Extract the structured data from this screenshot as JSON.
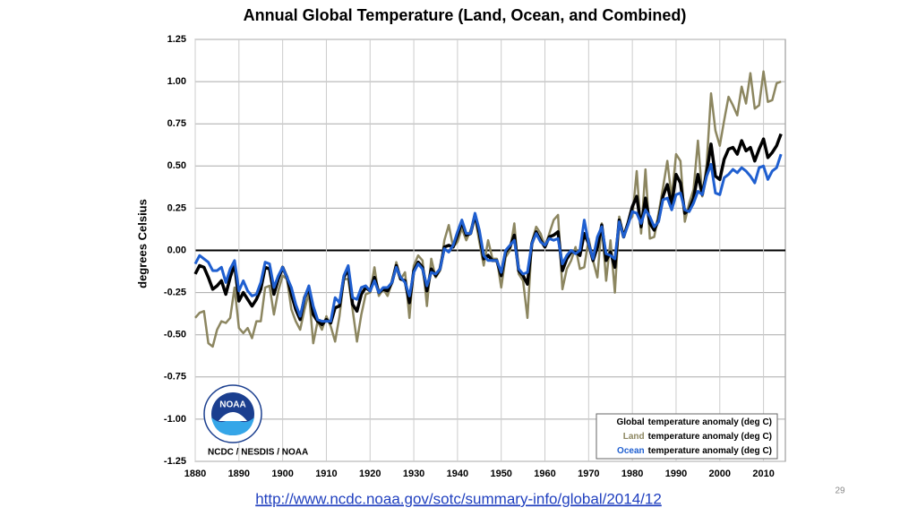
{
  "chart_data": {
    "type": "line",
    "title": "Annual Global Temperature (Land, Ocean, and Combined)",
    "y_label": "degrees Celsius",
    "source": "NCDC / NESDIS / NOAA",
    "logo_text": "NOAA",
    "link": "http://www.ncdc.noaa.gov/sotc/summary-info/global/2014/12",
    "page_number": "29",
    "grid": true,
    "legend": "lower right",
    "xlim": [
      1880,
      2015
    ],
    "ylim": [
      -1.25,
      1.25
    ],
    "xticks": [
      1880,
      1890,
      1900,
      1910,
      1920,
      1930,
      1940,
      1950,
      1960,
      1970,
      1980,
      1990,
      2000,
      2010
    ],
    "yticks": [
      {
        "value": -1.25,
        "label": "-1.25"
      },
      {
        "value": -1,
        "label": "-1.00"
      },
      {
        "value": -0.75,
        "label": "-0.75"
      },
      {
        "value": -0.5,
        "label": "-0.50"
      },
      {
        "value": -0.25,
        "label": "-0.25"
      },
      {
        "value": 0,
        "label": "0.00"
      },
      {
        "value": 0.25,
        "label": "0.25"
      },
      {
        "value": 0.5,
        "label": "0.50"
      },
      {
        "value": 0.75,
        "label": "0.75"
      },
      {
        "value": 1,
        "label": "1.00"
      },
      {
        "value": 1.25,
        "label": "1.25"
      }
    ],
    "x": [
      1880,
      1881,
      1882,
      1883,
      1884,
      1885,
      1886,
      1887,
      1888,
      1889,
      1890,
      1891,
      1892,
      1893,
      1894,
      1895,
      1896,
      1897,
      1898,
      1899,
      1900,
      1901,
      1902,
      1903,
      1904,
      1905,
      1906,
      1907,
      1908,
      1909,
      1910,
      1911,
      1912,
      1913,
      1914,
      1915,
      1916,
      1917,
      1918,
      1919,
      1920,
      1921,
      1922,
      1923,
      1924,
      1925,
      1926,
      1927,
      1928,
      1929,
      1930,
      1931,
      1932,
      1933,
      1934,
      1935,
      1936,
      1937,
      1938,
      1939,
      1940,
      1941,
      1942,
      1943,
      1944,
      1945,
      1946,
      1947,
      1948,
      1949,
      1950,
      1951,
      1952,
      1953,
      1954,
      1955,
      1956,
      1957,
      1958,
      1959,
      1960,
      1961,
      1962,
      1963,
      1964,
      1965,
      1966,
      1967,
      1968,
      1969,
      1970,
      1971,
      1972,
      1973,
      1974,
      1975,
      1976,
      1977,
      1978,
      1979,
      1980,
      1981,
      1982,
      1983,
      1984,
      1985,
      1986,
      1987,
      1988,
      1989,
      1990,
      1991,
      1992,
      1993,
      1994,
      1995,
      1996,
      1997,
      1998,
      1999,
      2000,
      2001,
      2002,
      2003,
      2004,
      2005,
      2006,
      2007,
      2008,
      2009,
      2010,
      2011,
      2012,
      2013,
      2014
    ],
    "series": [
      {
        "name": "Land",
        "legend_text": "temperature anomaly (deg C)",
        "color": "#8c8660",
        "width": 2.5,
        "values": [
          -0.4,
          -0.37,
          -0.36,
          -0.55,
          -0.57,
          -0.47,
          -0.42,
          -0.43,
          -0.4,
          -0.22,
          -0.46,
          -0.49,
          -0.46,
          -0.52,
          -0.42,
          -0.42,
          -0.22,
          -0.21,
          -0.38,
          -0.24,
          -0.15,
          -0.17,
          -0.35,
          -0.42,
          -0.47,
          -0.35,
          -0.25,
          -0.55,
          -0.42,
          -0.47,
          -0.39,
          -0.45,
          -0.54,
          -0.39,
          -0.17,
          -0.17,
          -0.35,
          -0.54,
          -0.38,
          -0.26,
          -0.25,
          -0.1,
          -0.27,
          -0.23,
          -0.27,
          -0.19,
          -0.07,
          -0.17,
          -0.13,
          -0.4,
          -0.09,
          -0.03,
          -0.06,
          -0.33,
          -0.05,
          -0.16,
          -0.12,
          0.06,
          0.15,
          0.02,
          0.05,
          0.13,
          0.06,
          0.12,
          0.2,
          0.05,
          -0.09,
          0.06,
          -0.05,
          -0.05,
          -0.22,
          -0.04,
          0.0,
          0.16,
          -0.14,
          -0.18,
          -0.4,
          0.05,
          0.14,
          0.1,
          0.02,
          0.1,
          0.18,
          0.21,
          -0.23,
          -0.11,
          -0.06,
          0.02,
          -0.11,
          -0.1,
          0.07,
          -0.06,
          -0.16,
          0.16,
          -0.18,
          0.06,
          -0.25,
          0.2,
          0.09,
          0.17,
          0.2,
          0.47,
          0.1,
          0.48,
          0.07,
          0.08,
          0.22,
          0.37,
          0.53,
          0.31,
          0.57,
          0.53,
          0.17,
          0.28,
          0.36,
          0.65,
          0.32,
          0.51,
          0.93,
          0.71,
          0.62,
          0.77,
          0.91,
          0.86,
          0.8,
          0.97,
          0.87,
          1.05,
          0.84,
          0.86,
          1.06,
          0.88,
          0.89,
          0.99,
          1.0
        ]
      },
      {
        "name": "Global",
        "legend_text": "temperature anomaly (deg C)",
        "color": "#000000",
        "width": 3.5,
        "values": [
          -0.14,
          -0.09,
          -0.1,
          -0.16,
          -0.23,
          -0.21,
          -0.18,
          -0.26,
          -0.16,
          -0.08,
          -0.3,
          -0.25,
          -0.29,
          -0.33,
          -0.29,
          -0.23,
          -0.1,
          -0.11,
          -0.26,
          -0.17,
          -0.1,
          -0.16,
          -0.26,
          -0.35,
          -0.41,
          -0.28,
          -0.22,
          -0.38,
          -0.42,
          -0.44,
          -0.41,
          -0.43,
          -0.34,
          -0.33,
          -0.16,
          -0.11,
          -0.32,
          -0.36,
          -0.26,
          -0.22,
          -0.24,
          -0.16,
          -0.25,
          -0.23,
          -0.24,
          -0.19,
          -0.09,
          -0.17,
          -0.18,
          -0.31,
          -0.12,
          -0.07,
          -0.1,
          -0.24,
          -0.11,
          -0.15,
          -0.11,
          0.02,
          0.03,
          0.02,
          0.09,
          0.17,
          0.09,
          0.1,
          0.21,
          0.1,
          -0.05,
          -0.03,
          -0.06,
          -0.06,
          -0.15,
          -0.01,
          0.02,
          0.09,
          -0.12,
          -0.15,
          -0.2,
          0.04,
          0.11,
          0.06,
          0.02,
          0.08,
          0.09,
          0.11,
          -0.12,
          -0.05,
          -0.01,
          -0.01,
          -0.03,
          0.1,
          0.04,
          -0.06,
          0.02,
          0.15,
          -0.06,
          -0.01,
          -0.1,
          0.18,
          0.08,
          0.16,
          0.26,
          0.32,
          0.14,
          0.31,
          0.16,
          0.12,
          0.18,
          0.32,
          0.39,
          0.27,
          0.45,
          0.4,
          0.22,
          0.24,
          0.31,
          0.45,
          0.33,
          0.46,
          0.63,
          0.44,
          0.42,
          0.54,
          0.6,
          0.61,
          0.57,
          0.65,
          0.59,
          0.61,
          0.53,
          0.6,
          0.66,
          0.55,
          0.58,
          0.62,
          0.69
        ]
      },
      {
        "name": "Ocean",
        "legend_text": "temperature anomaly (deg C)",
        "color": "#1f5fd0",
        "width": 3,
        "values": [
          -0.08,
          -0.03,
          -0.05,
          -0.07,
          -0.12,
          -0.12,
          -0.1,
          -0.19,
          -0.11,
          -0.06,
          -0.24,
          -0.18,
          -0.24,
          -0.27,
          -0.26,
          -0.19,
          -0.07,
          -0.08,
          -0.22,
          -0.15,
          -0.1,
          -0.16,
          -0.22,
          -0.32,
          -0.39,
          -0.28,
          -0.21,
          -0.33,
          -0.41,
          -0.42,
          -0.42,
          -0.42,
          -0.28,
          -0.31,
          -0.15,
          -0.09,
          -0.28,
          -0.29,
          -0.22,
          -0.21,
          -0.24,
          -0.18,
          -0.25,
          -0.22,
          -0.22,
          -0.19,
          -0.1,
          -0.16,
          -0.19,
          -0.27,
          -0.13,
          -0.08,
          -0.11,
          -0.21,
          -0.13,
          -0.14,
          -0.11,
          0.01,
          -0.01,
          0.03,
          0.11,
          0.18,
          0.1,
          0.1,
          0.22,
          0.12,
          -0.03,
          -0.06,
          -0.06,
          -0.06,
          -0.13,
          0.0,
          0.03,
          0.06,
          -0.11,
          -0.14,
          -0.13,
          0.04,
          0.1,
          0.05,
          0.03,
          0.07,
          0.06,
          0.07,
          -0.08,
          -0.03,
          0.0,
          -0.02,
          0.0,
          0.18,
          0.04,
          -0.05,
          0.08,
          0.14,
          -0.02,
          -0.03,
          -0.05,
          0.17,
          0.08,
          0.15,
          0.23,
          0.22,
          0.16,
          0.24,
          0.2,
          0.14,
          0.17,
          0.3,
          0.31,
          0.24,
          0.33,
          0.34,
          0.24,
          0.23,
          0.28,
          0.35,
          0.33,
          0.44,
          0.51,
          0.34,
          0.33,
          0.43,
          0.45,
          0.48,
          0.46,
          0.49,
          0.47,
          0.44,
          0.4,
          0.49,
          0.5,
          0.42,
          0.47,
          0.49,
          0.57
        ]
      }
    ]
  }
}
